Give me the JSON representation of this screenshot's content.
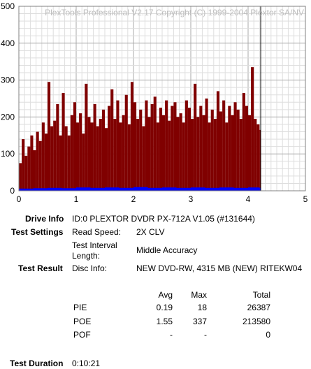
{
  "chart_data": {
    "type": "bar",
    "watermark": "PlexTools Professional V2.17 Copyright (C) 1999-2004 Plextor SA/NV",
    "xlim": [
      0,
      5
    ],
    "ylim": [
      0,
      500
    ],
    "x_ticks": [
      "0",
      "1",
      "2",
      "3",
      "4",
      "5"
    ],
    "y_ticks": [
      "0",
      "100",
      "200",
      "300",
      "400",
      "500"
    ],
    "grid": true,
    "x_end": 4.22,
    "series": [
      {
        "color": "#800000",
        "x": [
          0.0,
          0.05,
          0.1,
          0.15,
          0.2,
          0.25,
          0.3,
          0.35,
          0.4,
          0.45,
          0.5,
          0.55,
          0.6,
          0.65,
          0.7,
          0.75,
          0.8,
          0.85,
          0.9,
          0.95,
          1.0,
          1.05,
          1.1,
          1.15,
          1.2,
          1.25,
          1.3,
          1.35,
          1.4,
          1.45,
          1.5,
          1.55,
          1.6,
          1.65,
          1.7,
          1.75,
          1.8,
          1.85,
          1.9,
          1.95,
          2.0,
          2.05,
          2.1,
          2.15,
          2.2,
          2.25,
          2.3,
          2.35,
          2.4,
          2.45,
          2.5,
          2.55,
          2.6,
          2.65,
          2.7,
          2.75,
          2.8,
          2.85,
          2.9,
          2.95,
          3.0,
          3.05,
          3.1,
          3.15,
          3.2,
          3.25,
          3.3,
          3.35,
          3.4,
          3.45,
          3.5,
          3.55,
          3.6,
          3.65,
          3.7,
          3.75,
          3.8,
          3.85,
          3.9,
          3.95,
          4.0,
          4.05,
          4.1,
          4.15,
          4.2
        ],
        "values": [
          75,
          140,
          95,
          120,
          150,
          110,
          160,
          135,
          185,
          155,
          295,
          175,
          190,
          235,
          150,
          265,
          175,
          150,
          205,
          240,
          185,
          210,
          155,
          290,
          200,
          185,
          235,
          175,
          195,
          220,
          170,
          230,
          275,
          195,
          245,
          185,
          205,
          260,
          180,
          295,
          240,
          195,
          220,
          175,
          245,
          200,
          235,
          255,
          185,
          225,
          205,
          245,
          190,
          230,
          240,
          200,
          210,
          185,
          245,
          225,
          195,
          290,
          200,
          230,
          205,
          250,
          185,
          220,
          195,
          270,
          215,
          245,
          185,
          230,
          205,
          240,
          220,
          195,
          265,
          230,
          205,
          335,
          195,
          180,
          165
        ]
      },
      {
        "color": "#0000ff",
        "x": [
          0.0,
          0.25,
          0.5,
          0.75,
          1.0,
          1.25,
          1.5,
          1.75,
          2.0,
          2.25,
          2.5,
          2.75,
          3.0,
          3.25,
          3.5,
          3.75,
          4.0,
          4.2
        ],
        "values": [
          6,
          7,
          8,
          7,
          9,
          8,
          9,
          8,
          10,
          8,
          9,
          8,
          9,
          8,
          9,
          8,
          9,
          8
        ]
      }
    ]
  },
  "info": {
    "drive_label": "Drive Info",
    "drive_value": "ID:0 PLEXTOR DVDR PX-712A V1.05 (#131644)",
    "settings_label": "Test Settings",
    "read_speed_label": "Read Speed:",
    "read_speed_value": "2X CLV",
    "interval_label_1": "Test Interval",
    "interval_label_2": "Length:",
    "interval_value": "Middle Accuracy",
    "result_label": "Test Result",
    "disc_label": "Disc Info:",
    "disc_value": "NEW DVD-RW, 4315 MB (NEW) RITEKW04",
    "col_avg": "Avg",
    "col_max": "Max",
    "col_total": "Total",
    "rows": [
      {
        "name": "PIE",
        "avg": "0.19",
        "max": "18",
        "total": "26387"
      },
      {
        "name": "POE",
        "avg": "1.55",
        "max": "337",
        "total": "213580"
      },
      {
        "name": "POF",
        "avg": "-",
        "max": "-",
        "total": "0"
      }
    ],
    "duration_label": "Test Duration",
    "duration_value": "0:10:21"
  }
}
